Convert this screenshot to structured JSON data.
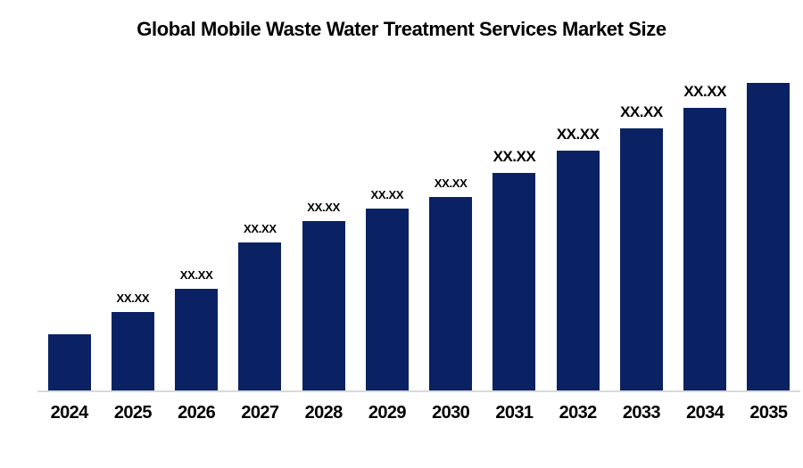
{
  "title": "Global Mobile Waste Water Treatment Services Market Size",
  "chart_data": {
    "type": "bar",
    "title": "Global Mobile Waste Water Treatment Services Market Size",
    "categories": [
      "2024",
      "2025",
      "2026",
      "2027",
      "2028",
      "2029",
      "2030",
      "2031",
      "2032",
      "2033",
      "2034",
      "2035"
    ],
    "series": [
      {
        "name": "Market Size",
        "values": [
          63,
          88,
          114,
          166,
          190,
          204,
          217,
          244,
          269,
          294,
          320,
          345
        ]
      }
    ],
    "values_note": "numeric values not disclosed on chart; bars labeled with XX.XX placeholders, values above are relative bar heights",
    "value_labels": [
      "",
      "XX.XX",
      "XX.XX",
      "XX.XX",
      "XX.XX",
      "XX.XX",
      "XX.XX",
      "XX.XX",
      "XX.XX",
      "XX.XX",
      "XX.XX",
      ""
    ],
    "value_label_sizes": [
      "none",
      "small",
      "small",
      "small",
      "small",
      "small",
      "small",
      "large",
      "large",
      "large",
      "large",
      "none"
    ],
    "xlabel": "",
    "ylabel": "",
    "y_axis_shown": false,
    "grid": false,
    "legend": false,
    "bar_color": "#0a2263",
    "axis_line_color": "#d9d9d9",
    "text_color": "#000000",
    "background_color": "#ffffff"
  }
}
